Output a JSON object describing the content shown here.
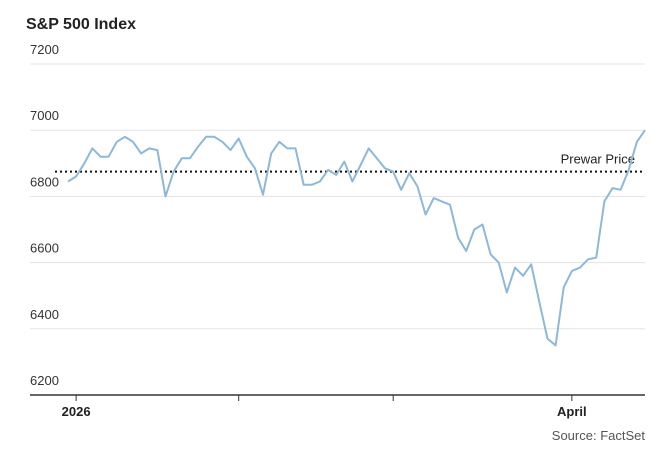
{
  "chart_data": {
    "type": "line",
    "title": "S&P 500 Index",
    "source": "Source: FactSet",
    "categories": [
      null,
      "2026",
      null,
      null,
      null,
      null,
      null,
      null,
      null,
      null,
      null,
      null,
      null,
      null,
      null,
      null,
      null,
      null,
      null,
      null,
      null,
      null,
      null,
      null,
      null,
      null,
      null,
      null,
      null,
      null,
      null,
      null,
      null,
      null,
      null,
      null,
      null,
      null,
      null,
      null,
      null,
      null,
      null,
      null,
      null,
      null,
      null,
      null,
      null,
      null,
      null,
      null,
      null,
      null,
      null,
      null,
      null,
      null,
      null,
      null,
      null,
      null,
      "April",
      null,
      null,
      null,
      null,
      null,
      null,
      null,
      null,
      null
    ],
    "series": [
      {
        "name": "S&P 500 Index",
        "color": "#8db8d8",
        "values": [
          6845,
          6860,
          6900,
          6945,
          6920,
          6920,
          6965,
          6980,
          6965,
          6930,
          6945,
          6940,
          6800,
          6875,
          6915,
          6915,
          6950,
          6980,
          6980,
          6965,
          6940,
          6975,
          6920,
          6885,
          6805,
          6930,
          6965,
          6945,
          6945,
          6835,
          6835,
          6845,
          6880,
          6865,
          6905,
          6845,
          6895,
          6945,
          6915,
          6885,
          6875,
          6820,
          6870,
          6830,
          6745,
          6795,
          6785,
          6775,
          6675,
          6635,
          6700,
          6715,
          6625,
          6600,
          6510,
          6585,
          6560,
          6595,
          6480,
          6370,
          6350,
          6525,
          6575,
          6585,
          6610,
          6615,
          6785,
          6825,
          6820,
          6880,
          6965,
          7000
        ]
      }
    ],
    "reference_line": {
      "value": 6875,
      "label": "Prewar Price"
    },
    "ylim": [
      6200,
      7200
    ],
    "yticks": [
      6200,
      6400,
      6600,
      6800,
      7000,
      7200
    ],
    "grid": true
  }
}
